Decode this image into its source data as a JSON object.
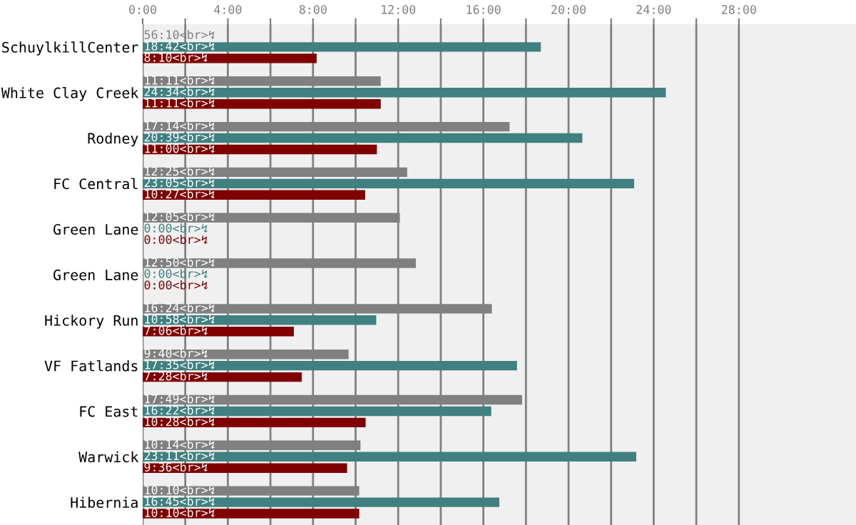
{
  "chart_data": {
    "type": "bar",
    "orientation": "horizontal",
    "grid": "x",
    "legend": false,
    "categories": [
      "SchuylkillCenter",
      "White Clay Creek",
      "Rodney",
      "FC Central",
      "Green Lane",
      "Green Lane",
      "Hickory Run",
      "VF Fatlands",
      "FC East",
      "Warwick",
      "Hibernia"
    ],
    "xlim": [
      0,
      33.5
    ],
    "xticks": [
      {
        "value": 0,
        "label": "0:00"
      },
      {
        "value": 2,
        "label": null
      },
      {
        "value": 4,
        "label": "4:00"
      },
      {
        "value": 6,
        "label": null
      },
      {
        "value": 8,
        "label": "8:00"
      },
      {
        "value": 10,
        "label": null
      },
      {
        "value": 12,
        "label": "12:00"
      },
      {
        "value": 14,
        "label": null
      },
      {
        "value": 16,
        "label": "16:00"
      },
      {
        "value": 18,
        "label": null
      },
      {
        "value": 20,
        "label": "20:00"
      },
      {
        "value": 22,
        "label": null
      },
      {
        "value": 24,
        "label": "24:00"
      },
      {
        "value": 26,
        "label": null
      },
      {
        "value": 28,
        "label": "28:00"
      }
    ],
    "series": [
      {
        "color": "#808080",
        "values": [
          null,
          11.18,
          17.23,
          12.42,
          12.08,
          12.83,
          16.4,
          9.67,
          17.82,
          10.23,
          10.17
        ],
        "value_labels": [
          "56:10<br>↯",
          "11:11<br>↯",
          "17:14<br>↯",
          "12:25<br>↯",
          "12:05<br>↯",
          "12:50<br>↯",
          "16:24<br>↯",
          "9:40<br>↯",
          "17:49<br>↯",
          "10:14<br>↯",
          "10:10<br>↯"
        ]
      },
      {
        "color": "#408080",
        "values": [
          18.7,
          24.57,
          20.65,
          23.08,
          0,
          0,
          10.97,
          17.58,
          16.37,
          23.18,
          16.75
        ],
        "value_labels": [
          "18:42<br>↯",
          "24:34<br>↯",
          "20:39<br>↯",
          "23:05<br>↯",
          "0:00<br>↯",
          "0:00<br>↯",
          "10:58<br>↯",
          "17:35<br>↯",
          "16:22<br>↯",
          "23:11<br>↯",
          "16:45<br>↯"
        ]
      },
      {
        "color": "#800000",
        "values": [
          8.17,
          11.18,
          11.0,
          10.45,
          0,
          0,
          7.1,
          7.47,
          10.47,
          9.6,
          10.17
        ],
        "value_labels": [
          "8:10<br>↯",
          "11:11<br>↯",
          "11:00<br>↯",
          "10:27<br>↯",
          "0:00<br>↯",
          "0:00<br>↯",
          "7:06<br>↯",
          "7:28<br>↯",
          "10:28<br>↯",
          "9:36<br>↯",
          "10:10<br>↯"
        ]
      }
    ]
  }
}
